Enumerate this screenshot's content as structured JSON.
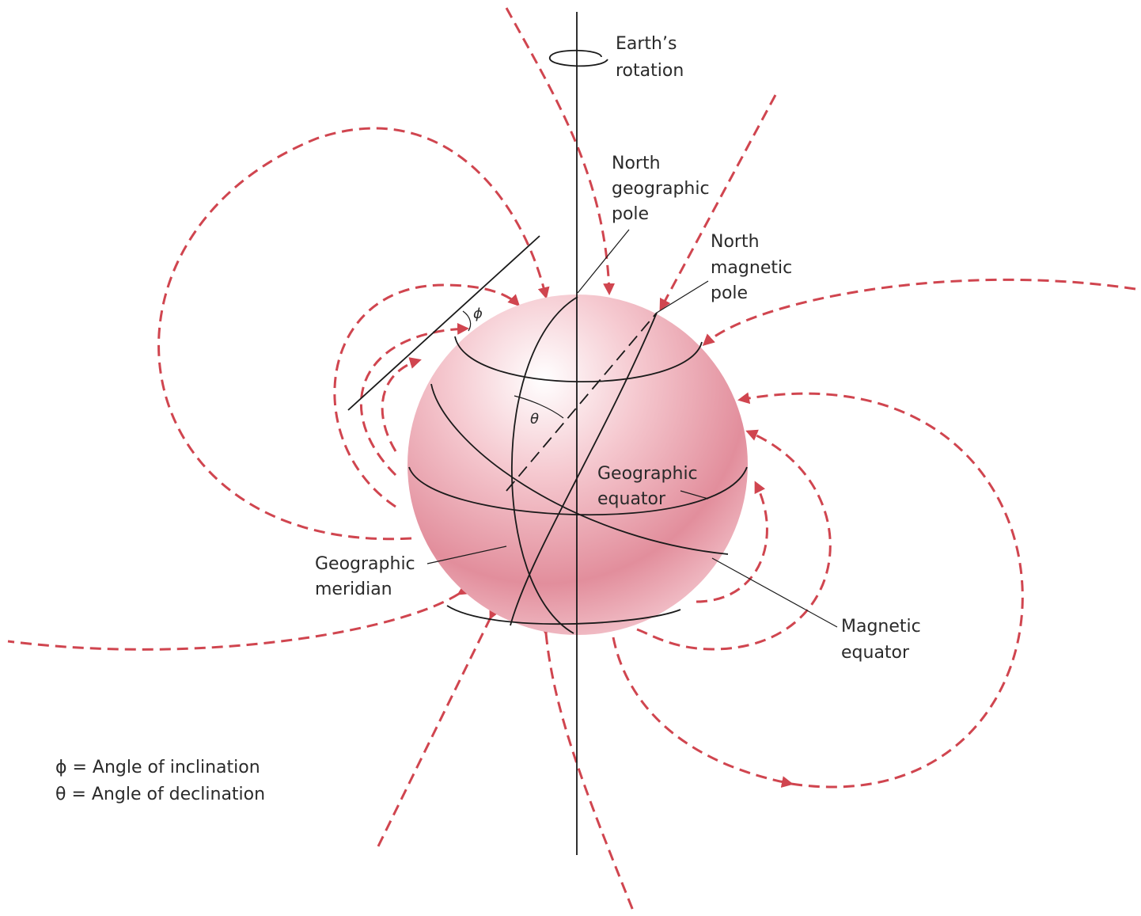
{
  "labels": {
    "rotation": [
      "Earth’s",
      "rotation"
    ],
    "north_geographic_pole": [
      "North",
      "geographic",
      "pole"
    ],
    "north_magnetic_pole": [
      "North",
      "magnetic",
      "pole"
    ],
    "geographic_equator": [
      "Geographic",
      "equator"
    ],
    "geographic_meridian": [
      "Geographic",
      "meridian"
    ],
    "magnetic_equator": [
      "Magnetic",
      "equator"
    ],
    "phi": "ϕ",
    "theta": "θ"
  },
  "legend": [
    "ϕ = Angle of inclination",
    "θ = Angle of declination"
  ]
}
